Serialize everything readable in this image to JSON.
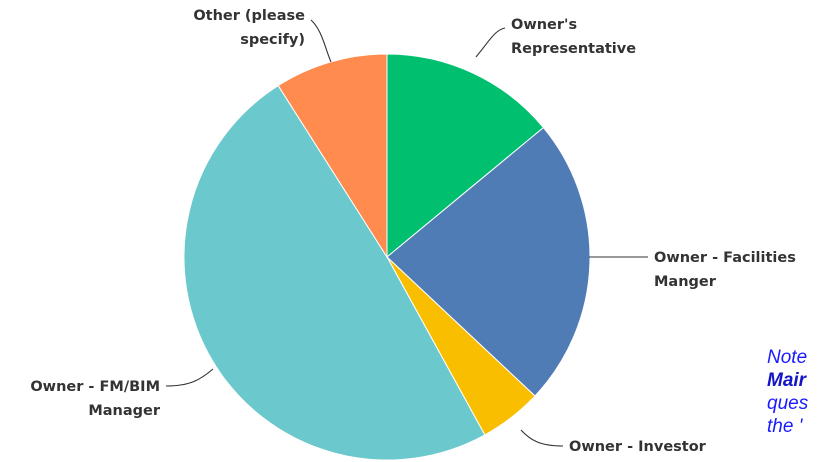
{
  "chart_data": {
    "type": "pie",
    "slices": [
      {
        "label_lines": [
          "Owner's",
          "Representative"
        ],
        "value": 14,
        "color": "#00bf6f"
      },
      {
        "label_lines": [
          "Owner - Facilities",
          "Manger"
        ],
        "value": 23,
        "color": "#507cb6"
      },
      {
        "label_lines": [
          "Owner - Investor"
        ],
        "value": 5,
        "color": "#f9be00"
      },
      {
        "label_lines": [
          "Owner - FM/BIM",
          "Manager"
        ],
        "value": 49,
        "color": "#6bc8cd"
      },
      {
        "label_lines": [
          "Other (please",
          "specify)"
        ],
        "value": 9,
        "color": "#ff8b4f"
      }
    ],
    "start_angle_deg": 0,
    "direction": "clockwise"
  },
  "note": {
    "line1": "Note",
    "line2": "Mair",
    "line3": "ques",
    "line4": "the '"
  }
}
